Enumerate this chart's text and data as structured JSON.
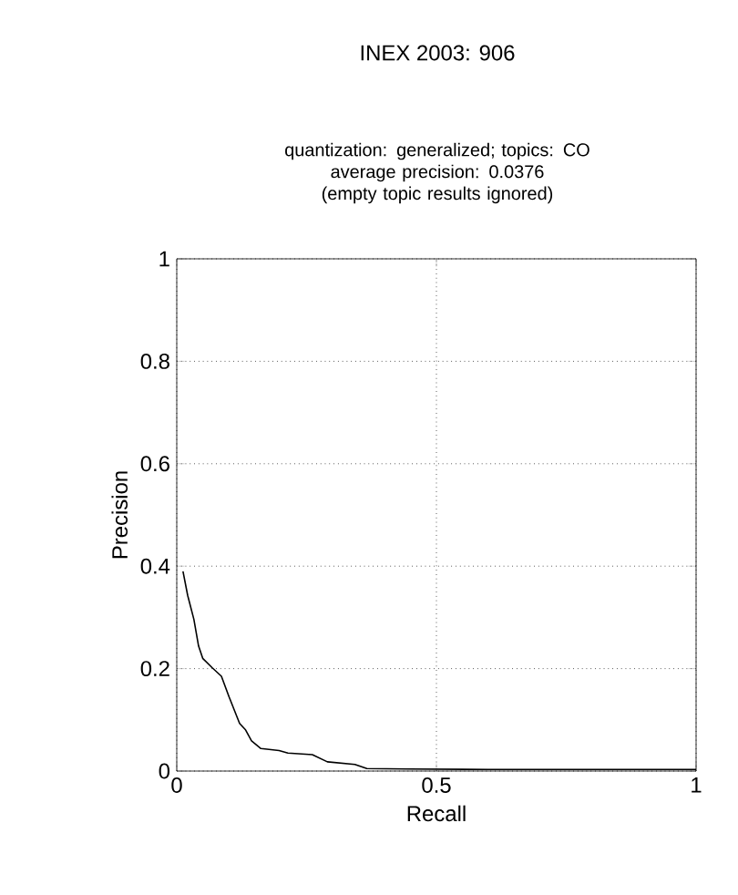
{
  "chart_data": {
    "type": "line",
    "title": "INEX 2003: 906",
    "subtitle": "quantization: generalized; topics: CO\naverage precision: 0.0376\n(empty topic results ignored)",
    "xlabel": "Recall",
    "ylabel": "Precision",
    "x": [
      0.012,
      0.021,
      0.033,
      0.042,
      0.05,
      0.068,
      0.086,
      0.101,
      0.121,
      0.132,
      0.144,
      0.162,
      0.197,
      0.214,
      0.261,
      0.29,
      0.343,
      0.366,
      0.443,
      0.6,
      0.8,
      1.0
    ],
    "series": [
      {
        "color": "#000000",
        "values": [
          0.39,
          0.343,
          0.296,
          0.244,
          0.22,
          0.202,
          0.185,
          0.144,
          0.093,
          0.081,
          0.059,
          0.044,
          0.04,
          0.035,
          0.032,
          0.018,
          0.013,
          0.005,
          0.004,
          0.003,
          0.003,
          0.003
        ]
      }
    ],
    "xlim": [
      0,
      1
    ],
    "ylim": [
      0,
      1
    ],
    "xticks": [
      0,
      0.5,
      1
    ],
    "yticks": [
      0,
      0.2,
      0.4,
      0.6,
      0.8,
      1
    ],
    "grid": true
  }
}
